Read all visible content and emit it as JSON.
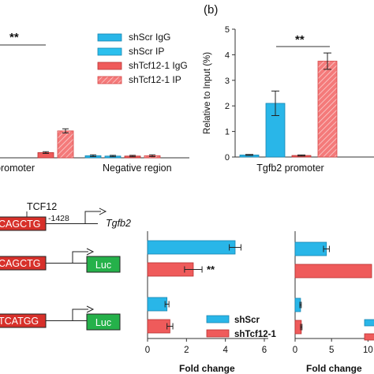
{
  "colors": {
    "blue": "#29b6e8",
    "red": "#ef5b5b",
    "red_dark": "#d7302a",
    "green": "#25b14a",
    "hatch_red": "#f46a6a"
  },
  "panel_b": {
    "label": "(b)"
  },
  "legend_top": {
    "items": [
      {
        "text": "shScr IgG",
        "style": "blue-dark"
      },
      {
        "text": "shScr IP",
        "style": "blue"
      },
      {
        "text": "shTcf12-1 IgG",
        "style": "red"
      },
      {
        "text": "shTcf12-1 IP",
        "style": "red-hatch"
      }
    ]
  },
  "legend_bottom": {
    "items": [
      {
        "text": "shScr",
        "style": "blue"
      },
      {
        "text": "shTcf12-1",
        "style": "red"
      }
    ]
  },
  "diagram": {
    "tcf12_label": "TCF12",
    "position_label": "-1428",
    "gene_label": "Tgfb2",
    "boxes": [
      "CAGCTG",
      "CAGCTG",
      "TCATGG"
    ],
    "luc_label": "Luc"
  },
  "chart_data": [
    {
      "id": "chip_a",
      "type": "bar",
      "categories": [
        "promoter",
        "Negative region"
      ],
      "series": [
        {
          "name": "shScr IgG",
          "values": [
            null,
            0.12
          ]
        },
        {
          "name": "shScr IP",
          "values": [
            null,
            0.1
          ]
        },
        {
          "name": "shTcf12-1 IgG",
          "values": [
            0.3,
            0.1
          ]
        },
        {
          "name": "shTcf12-1 IP",
          "values": [
            1.55,
            0.12
          ]
        }
      ],
      "errors": [
        [
          null,
          0.05
        ],
        [
          null,
          0.04
        ],
        [
          0.05,
          0.04
        ],
        [
          0.12,
          0.05
        ]
      ],
      "significance": "**",
      "ylim": [
        0,
        5
      ]
    },
    {
      "id": "chip_b",
      "type": "bar",
      "categories": [
        "Tgfb2 promoter"
      ],
      "ylabel": "Relative to Input (%)",
      "series": [
        {
          "name": "shScr IgG",
          "values": [
            0.08
          ]
        },
        {
          "name": "shScr IP",
          "values": [
            2.1
          ]
        },
        {
          "name": "shTcf12-1 IgG",
          "values": [
            0.06
          ]
        },
        {
          "name": "shTcf12-1 IP",
          "values": [
            3.75
          ]
        }
      ],
      "errors": [
        [
          0.02
        ],
        [
          0.48
        ],
        [
          0.02
        ],
        [
          0.32
        ]
      ],
      "yticks": [
        0,
        1,
        2,
        3,
        4,
        5
      ],
      "ylim": [
        0,
        5
      ],
      "significance": "**"
    },
    {
      "id": "luc_1",
      "type": "bar",
      "orientation": "horizontal",
      "groups": [
        "CAGCTG",
        "TCATGG"
      ],
      "series": [
        {
          "name": "shScr",
          "values": [
            4.5,
            1.0
          ]
        },
        {
          "name": "shTcf12-1",
          "values": [
            2.35,
            1.15
          ]
        }
      ],
      "errors": [
        [
          0.3,
          0.1
        ],
        [
          0.45,
          0.15
        ]
      ],
      "xlabel": "Fold change",
      "xticks": [
        0,
        2,
        4,
        6
      ],
      "xlim": [
        0,
        6
      ],
      "significance": "**"
    },
    {
      "id": "luc_2",
      "type": "bar",
      "orientation": "horizontal",
      "groups": [
        "CAGCTG",
        "TCATGG"
      ],
      "series": [
        {
          "name": "shScr",
          "values": [
            4.3,
            0.75
          ]
        },
        {
          "name": "shTcf12-1",
          "values": [
            10.5,
            0.85
          ]
        }
      ],
      "errors": [
        [
          0.4,
          0.1
        ],
        [
          null,
          0.1
        ]
      ],
      "xlabel": "Fold change",
      "xticks": [
        "0",
        "5",
        "10"
      ],
      "xlim": [
        0,
        10.5
      ]
    }
  ]
}
